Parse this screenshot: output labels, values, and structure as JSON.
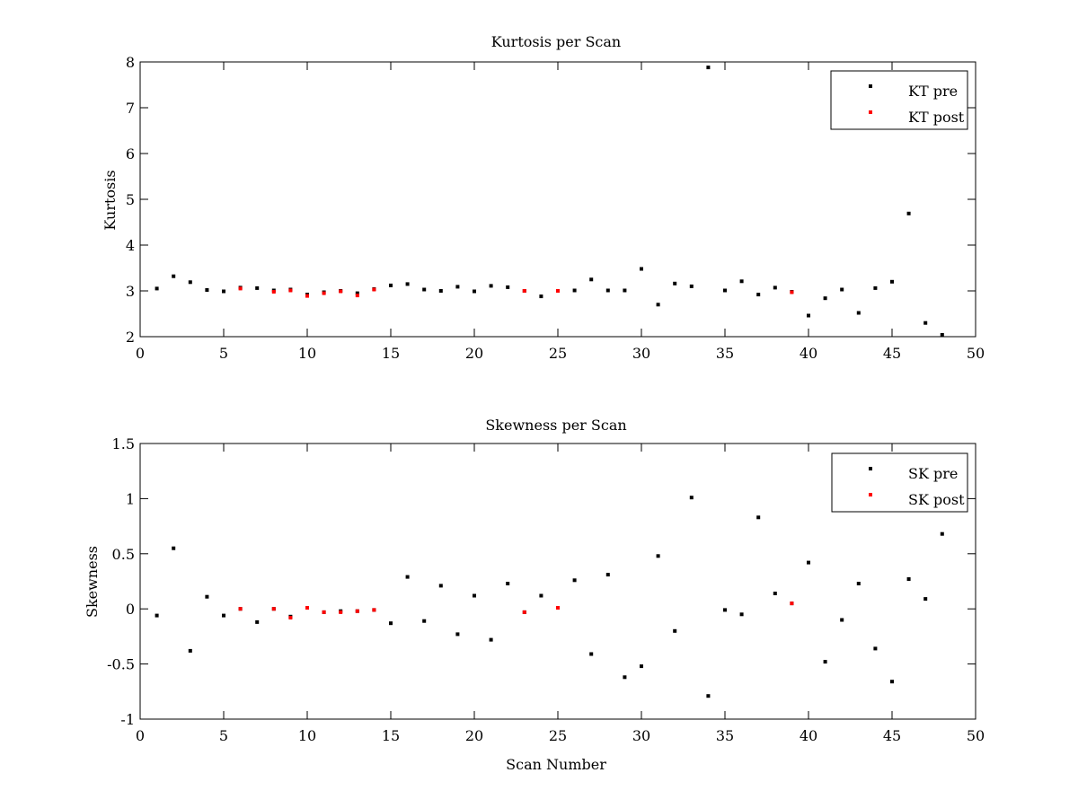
{
  "colors": {
    "pre": "#000000",
    "post": "#ff0000",
    "axes": "#000000",
    "background": "#ffffff"
  },
  "chart_data": [
    {
      "type": "scatter",
      "title": "Kurtosis per Scan",
      "xlabel": "",
      "ylabel": "Kurtosis",
      "xlim": [
        0,
        50
      ],
      "ylim": [
        2,
        8
      ],
      "xticks": [
        0,
        5,
        10,
        15,
        20,
        25,
        30,
        35,
        40,
        45,
        50
      ],
      "yticks": [
        2,
        3,
        4,
        5,
        6,
        7,
        8
      ],
      "grid": false,
      "legend_position": "top-right",
      "series": [
        {
          "name": "KT pre",
          "color": "#000000",
          "x": [
            1,
            2,
            3,
            4,
            5,
            6,
            7,
            8,
            9,
            10,
            11,
            12,
            13,
            14,
            15,
            16,
            17,
            18,
            19,
            20,
            21,
            22,
            23,
            24,
            25,
            26,
            27,
            28,
            29,
            30,
            31,
            32,
            33,
            34,
            35,
            36,
            37,
            38,
            39,
            40,
            41,
            42,
            43,
            44,
            45,
            46,
            47,
            48
          ],
          "y": [
            3.05,
            3.32,
            3.19,
            3.02,
            2.99,
            3.07,
            3.06,
            3.01,
            3.03,
            2.92,
            2.97,
            3.0,
            2.95,
            3.04,
            3.12,
            3.15,
            3.03,
            3.0,
            3.09,
            2.99,
            3.11,
            3.08,
            3.0,
            2.88,
            3.0,
            3.01,
            3.25,
            3.01,
            3.01,
            3.48,
            2.7,
            3.16,
            3.1,
            7.88,
            3.01,
            3.21,
            2.92,
            3.07,
            2.98,
            2.46,
            2.84,
            3.03,
            2.52,
            3.06,
            3.2,
            4.69,
            2.3,
            2.04
          ]
        },
        {
          "name": "KT post",
          "color": "#ff0000",
          "x": [
            6,
            8,
            9,
            10,
            11,
            12,
            13,
            14,
            23,
            25,
            39
          ],
          "y": [
            3.05,
            2.98,
            3.01,
            2.89,
            2.95,
            2.99,
            2.9,
            3.03,
            3.0,
            3.0,
            2.97
          ]
        }
      ]
    },
    {
      "type": "scatter",
      "title": "Skewness per Scan",
      "xlabel": "Scan Number",
      "ylabel": "Skewness",
      "xlim": [
        0,
        50
      ],
      "ylim": [
        -1,
        1.5
      ],
      "xticks": [
        0,
        5,
        10,
        15,
        20,
        25,
        30,
        35,
        40,
        45,
        50
      ],
      "yticks": [
        -1,
        -0.5,
        0,
        0.5,
        1,
        1.5
      ],
      "grid": false,
      "legend_position": "top-right",
      "series": [
        {
          "name": "SK pre",
          "color": "#000000",
          "x": [
            1,
            2,
            3,
            4,
            5,
            6,
            7,
            8,
            9,
            10,
            11,
            12,
            13,
            14,
            15,
            16,
            17,
            18,
            19,
            20,
            21,
            22,
            23,
            24,
            25,
            26,
            27,
            28,
            29,
            30,
            31,
            32,
            33,
            34,
            35,
            36,
            37,
            38,
            39,
            40,
            41,
            42,
            43,
            44,
            45,
            46,
            47,
            48
          ],
          "y": [
            -0.06,
            0.55,
            -0.38,
            0.11,
            -0.06,
            0.0,
            -0.12,
            0.0,
            -0.07,
            0.01,
            -0.03,
            -0.02,
            -0.02,
            -0.01,
            -0.13,
            0.29,
            -0.11,
            0.21,
            -0.23,
            0.12,
            -0.28,
            0.23,
            -0.03,
            0.12,
            0.01,
            0.26,
            -0.41,
            0.31,
            -0.62,
            -0.52,
            0.48,
            -0.2,
            1.01,
            -0.79,
            -0.01,
            -0.05,
            0.83,
            0.14,
            0.05,
            0.42,
            -0.48,
            -0.1,
            0.23,
            -0.36,
            -0.66,
            0.27,
            0.09,
            0.68
          ]
        },
        {
          "name": "SK post",
          "color": "#ff0000",
          "x": [
            6,
            8,
            9,
            10,
            11,
            12,
            13,
            14,
            23,
            25,
            39
          ],
          "y": [
            0.0,
            0.0,
            -0.08,
            0.01,
            -0.03,
            -0.03,
            -0.02,
            -0.01,
            -0.03,
            0.01,
            0.05
          ]
        }
      ]
    }
  ]
}
